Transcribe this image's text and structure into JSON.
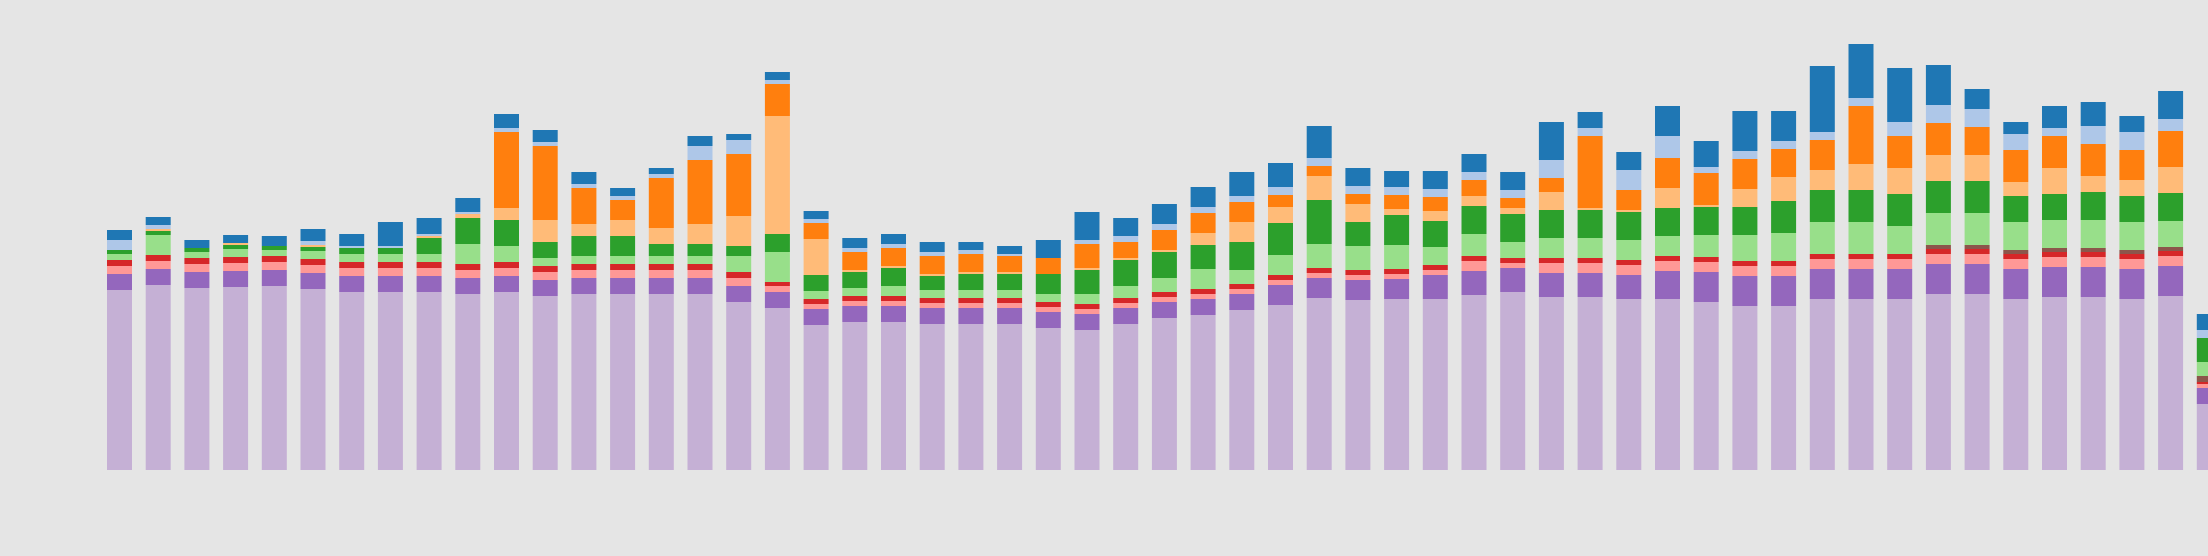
{
  "chart_data": {
    "type": "bar",
    "stacked": true,
    "grid": false,
    "legend": "none",
    "title": "",
    "xlabel": "",
    "ylabel": "",
    "ylim": [
      0,
      440
    ],
    "series": [
      {
        "color": "#c5b0d5",
        "values": [
          180,
          185,
          182,
          183,
          184,
          181,
          178,
          178,
          178,
          176,
          178,
          174,
          176,
          176,
          176,
          176,
          168,
          162,
          145,
          148,
          148,
          146,
          146,
          146,
          142,
          140,
          146,
          152,
          155,
          160,
          165,
          172,
          170,
          171,
          171,
          175,
          178,
          173,
          173,
          171,
          171,
          168,
          164,
          164,
          171,
          171,
          171,
          176,
          176,
          171,
          173,
          173,
          171,
          174,
          66
        ]
      },
      {
        "color": "#9467bd",
        "values": [
          16,
          16,
          16,
          16,
          16,
          16,
          16,
          16,
          16,
          16,
          16,
          16,
          16,
          16,
          16,
          16,
          16,
          16,
          16,
          16,
          16,
          16,
          16,
          16,
          16,
          16,
          16,
          16,
          16,
          16,
          20,
          20,
          20,
          20,
          24,
          24,
          24,
          24,
          24,
          24,
          28,
          30,
          30,
          30,
          30,
          30,
          30,
          30,
          30,
          30,
          30,
          30,
          30,
          30,
          16
        ]
      },
      {
        "color": "#ff9896",
        "values": [
          8,
          8,
          8,
          8,
          8,
          8,
          8,
          8,
          8,
          8,
          8,
          8,
          8,
          8,
          8,
          8,
          8,
          6,
          5,
          5,
          5,
          5,
          5,
          5,
          5,
          5,
          5,
          5,
          5,
          5,
          5,
          5,
          5,
          5,
          5,
          10,
          5,
          10,
          10,
          10,
          10,
          10,
          10,
          10,
          10,
          10,
          10,
          10,
          10,
          10,
          10,
          10,
          10,
          10,
          4
        ]
      },
      {
        "color": "#d62728",
        "values": [
          6,
          6,
          6,
          6,
          6,
          6,
          6,
          6,
          6,
          6,
          6,
          6,
          6,
          6,
          6,
          6,
          6,
          4,
          5,
          5,
          5,
          5,
          5,
          5,
          5,
          5,
          5,
          5,
          5,
          5,
          5,
          5,
          5,
          5,
          5,
          5,
          5,
          5,
          5,
          5,
          5,
          5,
          5,
          5,
          5,
          5,
          5,
          5,
          5,
          5,
          5,
          5,
          5,
          5,
          2
        ]
      },
      {
        "color": "#8c564b",
        "values": [
          0,
          0,
          0,
          0,
          0,
          0,
          0,
          0,
          0,
          0,
          0,
          0,
          0,
          0,
          0,
          0,
          0,
          0,
          0,
          0,
          0,
          0,
          0,
          0,
          0,
          0,
          0,
          0,
          0,
          0,
          0,
          0,
          0,
          0,
          0,
          0,
          0,
          0,
          0,
          0,
          0,
          0,
          0,
          0,
          0,
          0,
          0,
          4,
          4,
          4,
          4,
          4,
          4,
          4,
          6
        ]
      },
      {
        "color": "#98df8a",
        "values": [
          6,
          20,
          6,
          8,
          6,
          8,
          8,
          8,
          8,
          20,
          16,
          8,
          8,
          8,
          8,
          8,
          16,
          30,
          8,
          8,
          10,
          8,
          8,
          8,
          8,
          10,
          12,
          14,
          20,
          14,
          20,
          24,
          24,
          24,
          18,
          22,
          16,
          20,
          20,
          20,
          20,
          22,
          26,
          28,
          32,
          32,
          28,
          32,
          32,
          28,
          28,
          28,
          28,
          26,
          14
        ]
      },
      {
        "color": "#2ca02c",
        "values": [
          4,
          4,
          4,
          4,
          4,
          4,
          6,
          6,
          16,
          26,
          26,
          16,
          20,
          20,
          12,
          12,
          10,
          18,
          16,
          16,
          18,
          14,
          16,
          16,
          20,
          24,
          26,
          26,
          24,
          28,
          32,
          44,
          24,
          30,
          26,
          28,
          28,
          28,
          28,
          28,
          28,
          28,
          28,
          32,
          32,
          32,
          32,
          32,
          32,
          26,
          26,
          28,
          26,
          28,
          24
        ]
      },
      {
        "color": "#ffbb78",
        "values": [
          0,
          2,
          0,
          2,
          0,
          2,
          0,
          0,
          2,
          4,
          12,
          22,
          12,
          16,
          16,
          20,
          30,
          118,
          36,
          2,
          2,
          2,
          2,
          2,
          0,
          2,
          2,
          2,
          12,
          20,
          16,
          24,
          18,
          6,
          10,
          10,
          6,
          18,
          2,
          2,
          20,
          2,
          18,
          24,
          20,
          26,
          26,
          26,
          26,
          14,
          26,
          16,
          16,
          26,
          0
        ]
      },
      {
        "color": "#ff7f0e",
        "values": [
          0,
          0,
          0,
          0,
          0,
          0,
          0,
          0,
          0,
          0,
          76,
          74,
          36,
          20,
          50,
          64,
          62,
          32,
          16,
          18,
          18,
          18,
          18,
          16,
          16,
          24,
          16,
          20,
          20,
          20,
          12,
          10,
          10,
          14,
          14,
          16,
          10,
          14,
          72,
          20,
          30,
          32,
          30,
          28,
          30,
          58,
          32,
          32,
          28,
          32,
          32,
          32,
          30,
          36,
          0
        ]
      },
      {
        "color": "#aec7e8",
        "values": [
          10,
          4,
          0,
          0,
          0,
          4,
          2,
          2,
          2,
          2,
          4,
          4,
          4,
          4,
          4,
          14,
          14,
          4,
          4,
          4,
          4,
          4,
          4,
          2,
          0,
          4,
          6,
          6,
          6,
          6,
          8,
          8,
          8,
          8,
          8,
          8,
          8,
          18,
          8,
          20,
          22,
          6,
          8,
          8,
          8,
          8,
          14,
          18,
          18,
          16,
          8,
          18,
          18,
          12,
          8
        ]
      },
      {
        "color": "#1f77b4",
        "values": [
          10,
          8,
          8,
          8,
          10,
          12,
          12,
          24,
          16,
          14,
          14,
          12,
          12,
          8,
          6,
          10,
          6,
          8,
          8,
          10,
          10,
          10,
          8,
          8,
          18,
          28,
          18,
          20,
          20,
          24,
          24,
          32,
          18,
          16,
          18,
          18,
          18,
          38,
          16,
          18,
          30,
          26,
          40,
          30,
          66,
          54,
          54,
          40,
          20,
          12,
          22,
          24,
          16,
          28,
          16
        ]
      }
    ]
  }
}
